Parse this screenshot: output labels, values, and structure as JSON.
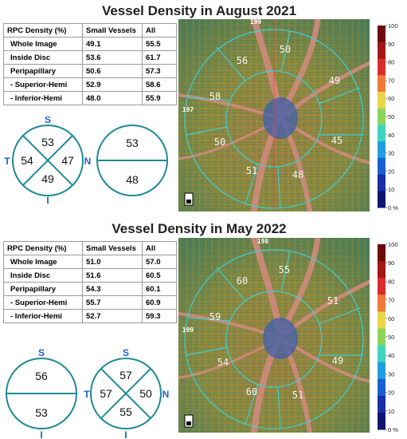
{
  "panels": [
    {
      "title": "Vessel Density in August 2021",
      "table": {
        "headers": [
          "RPC Density (%)",
          "Small Vessels",
          "All"
        ],
        "rows": [
          {
            "label": "Whole Image",
            "small": "49.1",
            "all": "55.5"
          },
          {
            "label": "Inside Disc",
            "small": "53.6",
            "all": "61.7"
          },
          {
            "label": "Peripapillary",
            "small": "50.6",
            "all": "57.3"
          },
          {
            "label": " - Superior-Hemi",
            "small": "52.9",
            "all": "58.6"
          },
          {
            "label": " - Inferior-Hemi",
            "small": "48.0",
            "all": "55.9"
          }
        ]
      },
      "quadrant": {
        "S": "53",
        "T": "54",
        "N": "47",
        "I": "49"
      },
      "hemi": {
        "top": "53",
        "bottom": "48"
      },
      "directions": {
        "s": "S",
        "t": "T",
        "n": "N",
        "i": "I"
      },
      "map": {
        "sectors": [
          "56",
          "50",
          "49",
          "58",
          "50",
          "45",
          "51",
          "48"
        ],
        "top_label": "199",
        "left_label": "197"
      }
    },
    {
      "title": "Vessel Density in May 2022",
      "table": {
        "headers": [
          "RPC Density (%)",
          "Small Vessels",
          "All"
        ],
        "rows": [
          {
            "label": "Whole Image",
            "small": "51.0",
            "all": "57.0"
          },
          {
            "label": "Inside Disc",
            "small": "51.6",
            "all": "60.5"
          },
          {
            "label": "Peripapillary",
            "small": "54.3",
            "all": "60.1"
          },
          {
            "label": " - Superior-Hemi",
            "small": "55.7",
            "all": "60.9"
          },
          {
            "label": " - Inferior-Hemi",
            "small": "52.7",
            "all": "59.3"
          }
        ]
      },
      "quadrant": {
        "S": "57",
        "T": "57",
        "N": "50",
        "I": "55"
      },
      "hemi": {
        "top": "56",
        "bottom": "53"
      },
      "directions": {
        "s": "S",
        "t": "T",
        "n": "N",
        "i": "I"
      },
      "map": {
        "sectors": [
          "60",
          "55",
          "51",
          "59",
          "54",
          "49",
          "60",
          "51"
        ],
        "top_label": "198",
        "left_label": "199"
      }
    }
  ],
  "colorbar": {
    "ticks": [
      "100",
      "90",
      "80",
      "70",
      "60",
      "50",
      "40",
      "30",
      "20",
      "10",
      "0 %"
    ],
    "colors": [
      "#6b0b0b",
      "#a31616",
      "#d92c2c",
      "#f07a3c",
      "#e8d64a",
      "#8fd45a",
      "#3fd3c2",
      "#1f9fe0",
      "#1a5fd0",
      "#1a2ea8",
      "#0e1470"
    ]
  }
}
